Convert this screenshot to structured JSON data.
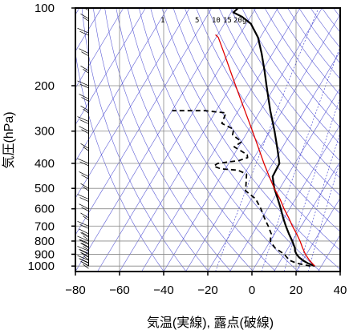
{
  "chart_data": {
    "type": "line",
    "chart_kind": "skew-T log-p diagram",
    "title": "",
    "xlabel": "気温(実線), 露点(破線)",
    "ylabel": "気圧(hPa)",
    "xlim": [
      -80,
      40
    ],
    "ylim": [
      1050,
      100
    ],
    "y_scale": "log",
    "x_ticks": [
      "−80",
      "−60",
      "−40",
      "−20",
      "0",
      "20",
      "40"
    ],
    "x_tick_values": [
      -80,
      -60,
      -40,
      -20,
      0,
      20,
      40
    ],
    "y_ticks": [
      "100",
      "200",
      "300",
      "400",
      "500",
      "600",
      "700",
      "800",
      "900",
      "1000"
    ],
    "y_tick_values": [
      100,
      200,
      300,
      400,
      500,
      600,
      700,
      800,
      900,
      1000
    ],
    "grid": true,
    "mixing_ratio_labels": [
      "1",
      "5",
      "10",
      "15",
      "20",
      "g"
    ],
    "mixing_ratio_values": [
      1,
      5,
      10,
      15,
      20
    ],
    "colors": {
      "temperature": "#000000",
      "dewpoint": "#000000",
      "parcel": "#e00000",
      "background_lines": "#3333cc",
      "grid": "#888888"
    },
    "series": [
      {
        "name": "気温",
        "style": "solid",
        "color": "#000000",
        "points": [
          [
            1000,
            27
          ],
          [
            975,
            23
          ],
          [
            950,
            20
          ],
          [
            925,
            17.5
          ],
          [
            900,
            15.5
          ],
          [
            875,
            14
          ],
          [
            850,
            13
          ],
          [
            800,
            10
          ],
          [
            750,
            6.5
          ],
          [
            700,
            3
          ],
          [
            650,
            -0.5
          ],
          [
            600,
            -4
          ],
          [
            550,
            -8
          ],
          [
            500,
            -12.5
          ],
          [
            450,
            -16.5
          ],
          [
            400,
            -17
          ],
          [
            350,
            -22
          ],
          [
            300,
            -28
          ],
          [
            250,
            -35.5
          ],
          [
            200,
            -44
          ],
          [
            175,
            -49
          ],
          [
            150,
            -55
          ],
          [
            130,
            -61
          ],
          [
            115,
            -68
          ],
          [
            108,
            -74
          ],
          [
            104,
            -79
          ],
          [
            100,
            -78
          ]
        ]
      },
      {
        "name": "露点",
        "style": "dashed",
        "color": "#000000",
        "points": [
          [
            1000,
            25
          ],
          [
            975,
            18
          ],
          [
            950,
            14
          ],
          [
            925,
            12
          ],
          [
            900,
            10
          ],
          [
            875,
            7
          ],
          [
            850,
            4
          ],
          [
            800,
            0
          ],
          [
            750,
            -1.5
          ],
          [
            700,
            -5
          ],
          [
            650,
            -9
          ],
          [
            600,
            -13
          ],
          [
            550,
            -18
          ],
          [
            510,
            -25
          ],
          [
            490,
            -26
          ],
          [
            440,
            -29
          ],
          [
            425,
            -34
          ],
          [
            420,
            -42
          ],
          [
            410,
            -46
          ],
          [
            400,
            -45
          ],
          [
            390,
            -36
          ],
          [
            380,
            -33
          ],
          [
            370,
            -34
          ],
          [
            345,
            -42
          ],
          [
            330,
            -40
          ],
          [
            310,
            -46
          ],
          [
            295,
            -47
          ],
          [
            280,
            -54
          ],
          [
            255,
            -55
          ],
          [
            250,
            -65
          ],
          [
            250,
            -80
          ]
        ]
      },
      {
        "name": "",
        "style": "solid",
        "color": "#e00000",
        "points": [
          [
            1000,
            27
          ],
          [
            950,
            23
          ],
          [
            900,
            19.5
          ],
          [
            850,
            16.5
          ],
          [
            800,
            13.5
          ],
          [
            750,
            10
          ],
          [
            700,
            6
          ],
          [
            650,
            2
          ],
          [
            600,
            -2.5
          ],
          [
            550,
            -7
          ],
          [
            500,
            -12.5
          ],
          [
            450,
            -18
          ],
          [
            400,
            -24
          ],
          [
            350,
            -30.5
          ],
          [
            300,
            -38
          ],
          [
            250,
            -47
          ],
          [
            200,
            -58
          ],
          [
            150,
            -72
          ],
          [
            130,
            -79
          ],
          [
            127,
            -81
          ]
        ]
      }
    ],
    "wind_barbs": {
      "x_position": -74,
      "pressures": [
        1000,
        975,
        950,
        925,
        900,
        875,
        850,
        825,
        800,
        775,
        750,
        700,
        650,
        600,
        550,
        500,
        450,
        400,
        350,
        300,
        275,
        250,
        225,
        200,
        175,
        150,
        125,
        110,
        100
      ]
    }
  }
}
